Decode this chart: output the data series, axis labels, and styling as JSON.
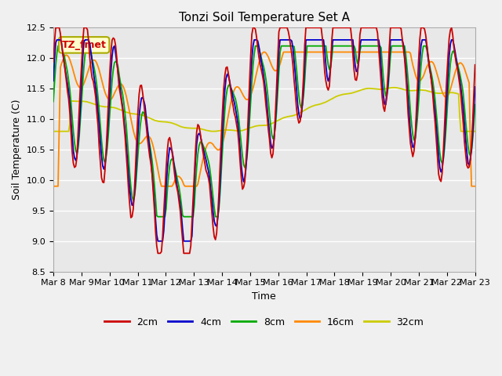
{
  "title": "Tonzi Soil Temperature Set A",
  "xlabel": "Time",
  "ylabel": "Soil Temperature (C)",
  "ylim": [
    8.5,
    12.5
  ],
  "xlim_days": [
    0,
    15
  ],
  "x_tick_labels": [
    "Mar 8",
    "Mar 9",
    "Mar 10",
    "Mar 11",
    "Mar 12",
    "Mar 13",
    "Mar 14",
    "Mar 15",
    "Mar 16",
    "Mar 17",
    "Mar 18",
    "Mar 19",
    "Mar 20",
    "Mar 21",
    "Mar 22",
    "Mar 23"
  ],
  "legend_labels": [
    "2cm",
    "4cm",
    "8cm",
    "16cm",
    "32cm"
  ],
  "line_colors": [
    "#cc0000",
    "#0000cc",
    "#00aa00",
    "#ff8800",
    "#cccc00"
  ],
  "annotation_text": "TZ_fmet",
  "annotation_color": "#cc0000",
  "annotation_bg": "#ffffcc",
  "annotation_edge": "#aaaa00",
  "fig_bg": "#f0f0f0",
  "plot_bg": "#e8e8e8",
  "grid_color": "#ffffff",
  "title_fontsize": 11,
  "axis_fontsize": 9,
  "tick_fontsize": 8,
  "legend_fontsize": 9,
  "line_width": 1.3
}
